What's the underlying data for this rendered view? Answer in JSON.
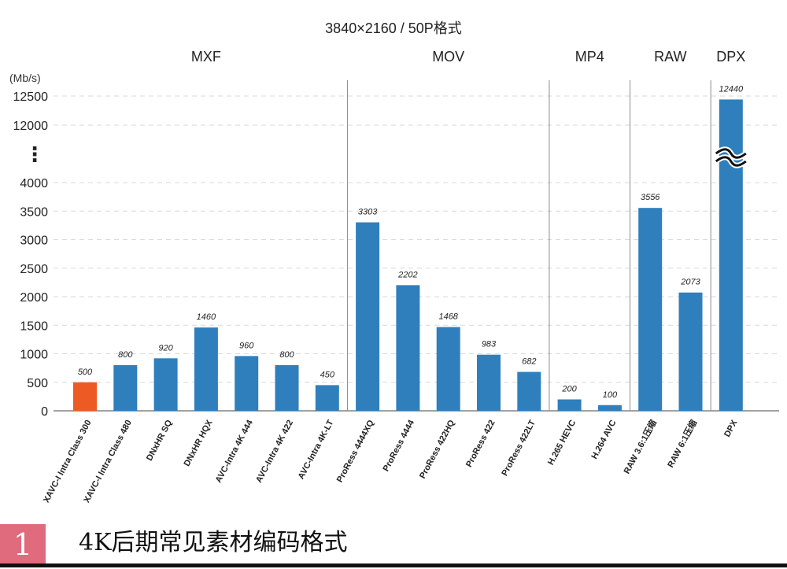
{
  "chart_data": {
    "type": "bar",
    "title": "3840×2160 / 50P格式",
    "ylabel": "(Mb/s)",
    "ylim": [
      0,
      12500
    ],
    "axis_break": {
      "lower_max": 4000,
      "upper_ticks": [
        12000,
        12500
      ],
      "ellipsis": "⋮",
      "break_symbol": "≈"
    },
    "yticks": [
      0,
      500,
      1000,
      1500,
      2000,
      2500,
      3000,
      3500,
      4000,
      12000,
      12500
    ],
    "groups": [
      {
        "name": "MXF",
        "start": 0,
        "end": 6
      },
      {
        "name": "MOV",
        "start": 7,
        "end": 11
      },
      {
        "name": "MP4",
        "start": 12,
        "end": 13
      },
      {
        "name": "RAW",
        "start": 14,
        "end": 15
      },
      {
        "name": "DPX",
        "start": 16,
        "end": 16
      }
    ],
    "categories": [
      "XAVC-I Intra Class 300",
      "XAVC-I Intra Class 480",
      "DNxHR SQ",
      "DNxHR HQX",
      "AVC-Intra 4K 444",
      "AVC-Intra 4K 422",
      "AVC-Intra 4K-LT",
      "ProRess 4444XQ",
      "ProRess 4444",
      "ProRess 422HQ",
      "ProRess 422",
      "ProRess 422LT",
      "H.265 HEVC",
      "H.264 AVC",
      "RAW 3.6:1压缩",
      "RAW 6:1压缩",
      "DPX"
    ],
    "values": [
      500,
      800,
      920,
      1460,
      960,
      800,
      450,
      3303,
      2202,
      1468,
      983,
      682,
      200,
      100,
      3556,
      2073,
      12440
    ],
    "value_labels": [
      "500",
      "800",
      "920",
      "1460",
      "960",
      "800",
      "450",
      "3303",
      "2202",
      "1468",
      "983",
      "682",
      "200",
      "100",
      "3556",
      "2073",
      "12440"
    ],
    "highlight_index": 0,
    "colors": {
      "bar": "#2f7fbd",
      "highlight": "#ee5a24",
      "grid": "#d9d9d9",
      "separator": "#8c8c8c"
    }
  },
  "caption": {
    "number": "1",
    "text": "4K后期常见素材编码格式",
    "number_bg": "#e06b7d"
  }
}
